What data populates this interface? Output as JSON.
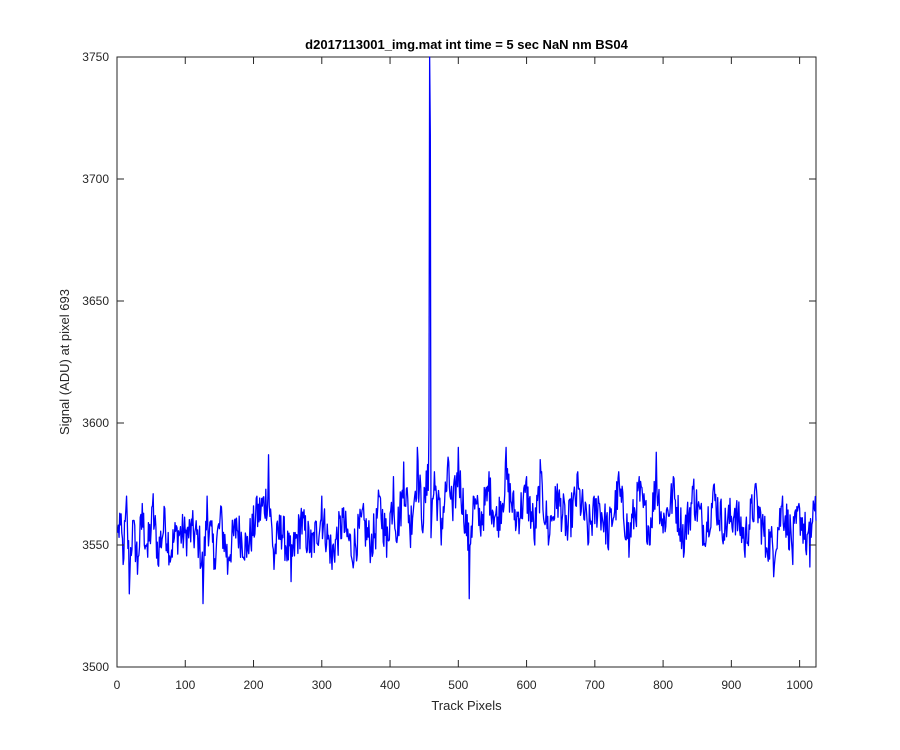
{
  "window": {
    "background": "#ffffff"
  },
  "chart_data": {
    "type": "line",
    "title": "d2017113001_img.mat int time = 5 sec  NaN nm BS04",
    "xlabel": "Track Pixels",
    "ylabel": "Signal (ADU) at pixel 693",
    "xlim": [
      0,
      1024
    ],
    "ylim": [
      3500,
      3750
    ],
    "xticks": [
      0,
      100,
      200,
      300,
      400,
      500,
      600,
      700,
      800,
      900,
      1000
    ],
    "yticks": [
      3500,
      3550,
      3600,
      3650,
      3700,
      3750
    ],
    "xtick_labels": [
      "0",
      "100",
      "200",
      "300",
      "400",
      "500",
      "600",
      "700",
      "800",
      "900",
      "1000"
    ],
    "ytick_labels": [
      "3500",
      "3550",
      "3600",
      "3650",
      "3700",
      "3750"
    ],
    "grid": false,
    "legend": "none",
    "series": [
      {
        "color": "#0000ff",
        "x_start": 1,
        "x_end": 1024,
        "keypoints": [
          [
            1,
            3555
          ],
          [
            4,
            3563
          ],
          [
            9,
            3542
          ],
          [
            14,
            3570
          ],
          [
            18,
            3530
          ],
          [
            23,
            3560
          ],
          [
            30,
            3538
          ],
          [
            37,
            3567
          ],
          [
            45,
            3545
          ],
          [
            53,
            3571
          ],
          [
            60,
            3542
          ],
          [
            70,
            3565
          ],
          [
            78,
            3543
          ],
          [
            88,
            3557
          ],
          [
            100,
            3555
          ],
          [
            110,
            3558
          ],
          [
            120,
            3551
          ],
          [
            126,
            3526
          ],
          [
            132,
            3570
          ],
          [
            142,
            3540
          ],
          [
            152,
            3566
          ],
          [
            162,
            3538
          ],
          [
            175,
            3561
          ],
          [
            190,
            3545
          ],
          [
            205,
            3570
          ],
          [
            222,
            3587
          ],
          [
            230,
            3540
          ],
          [
            240,
            3562
          ],
          [
            255,
            3535
          ],
          [
            270,
            3565
          ],
          [
            285,
            3545
          ],
          [
            300,
            3570
          ],
          [
            315,
            3540
          ],
          [
            330,
            3565
          ],
          [
            345,
            3543
          ],
          [
            360,
            3565
          ],
          [
            372,
            3548
          ],
          [
            385,
            3570
          ],
          [
            395,
            3545
          ],
          [
            405,
            3578
          ],
          [
            410,
            3551
          ],
          [
            420,
            3584
          ],
          [
            430,
            3549
          ],
          [
            440,
            3590
          ],
          [
            448,
            3555
          ],
          [
            455,
            3583
          ],
          [
            457,
            3598
          ],
          [
            458,
            3750
          ],
          [
            459,
            3718
          ],
          [
            460,
            3553
          ],
          [
            465,
            3580
          ],
          [
            475,
            3550
          ],
          [
            485,
            3586
          ],
          [
            492,
            3560
          ],
          [
            500,
            3590
          ],
          [
            510,
            3555
          ],
          [
            516,
            3528
          ],
          [
            522,
            3570
          ],
          [
            532,
            3557
          ],
          [
            545,
            3580
          ],
          [
            557,
            3556
          ],
          [
            570,
            3590
          ],
          [
            585,
            3558
          ],
          [
            600,
            3578
          ],
          [
            612,
            3550
          ],
          [
            620,
            3585
          ],
          [
            632,
            3550
          ],
          [
            645,
            3575
          ],
          [
            660,
            3552
          ],
          [
            675,
            3580
          ],
          [
            690,
            3550
          ],
          [
            705,
            3570
          ],
          [
            720,
            3548
          ],
          [
            735,
            3580
          ],
          [
            750,
            3545
          ],
          [
            765,
            3578
          ],
          [
            780,
            3550
          ],
          [
            790,
            3588
          ],
          [
            800,
            3555
          ],
          [
            815,
            3578
          ],
          [
            830,
            3545
          ],
          [
            845,
            3577
          ],
          [
            860,
            3550
          ],
          [
            875,
            3575
          ],
          [
            890,
            3552
          ],
          [
            905,
            3565
          ],
          [
            920,
            3545
          ],
          [
            935,
            3575
          ],
          [
            950,
            3545
          ],
          [
            962,
            3537
          ],
          [
            975,
            3570
          ],
          [
            990,
            3542
          ],
          [
            1000,
            3565
          ],
          [
            1010,
            3546
          ],
          [
            1015,
            3541
          ],
          [
            1020,
            3568
          ],
          [
            1024,
            3560
          ]
        ]
      }
    ]
  }
}
